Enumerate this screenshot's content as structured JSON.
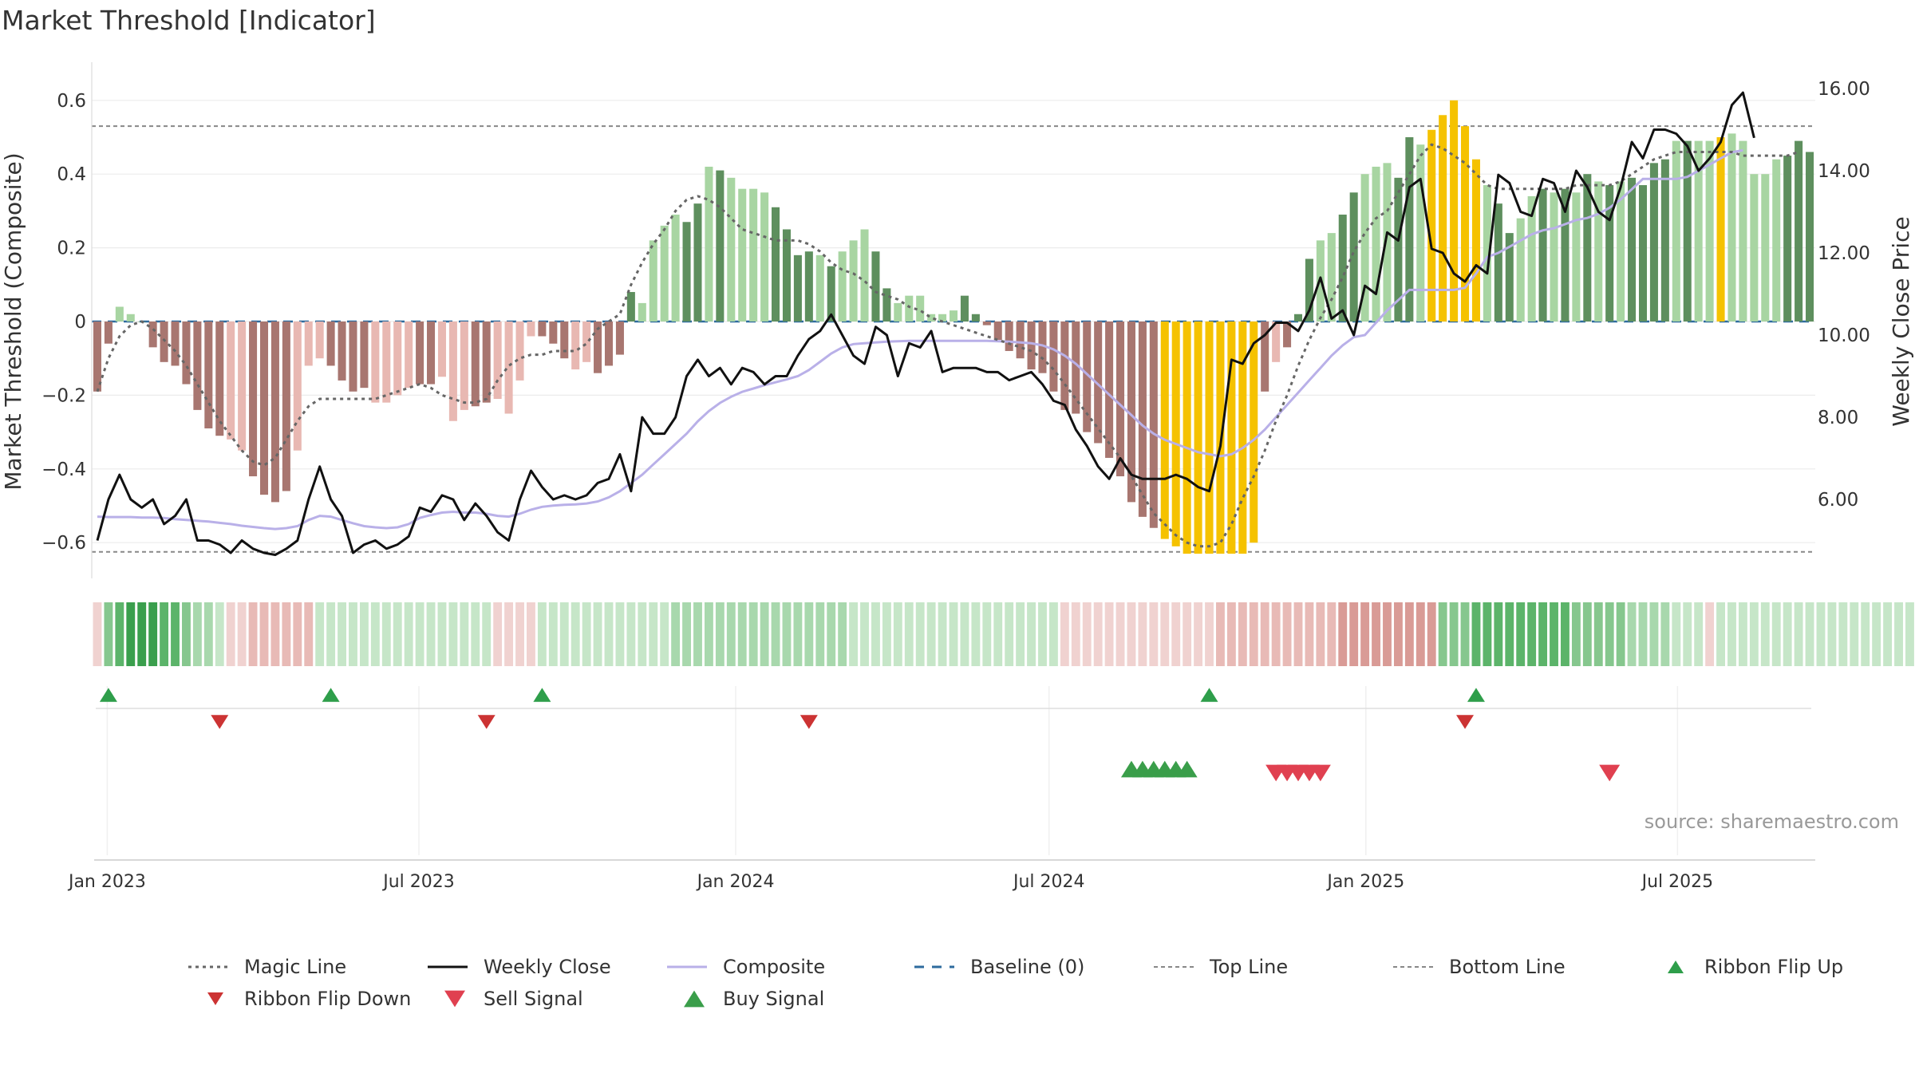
{
  "title": "Market Threshold [Indicator]",
  "source_text": "source: sharemaestro.com",
  "legend": [
    {
      "label": "Magic Line",
      "style": "dotted",
      "color": "#666666"
    },
    {
      "label": "Weekly Close",
      "style": "line",
      "color": "#111111"
    },
    {
      "label": "Composite",
      "style": "line",
      "color": "#b9b0e8"
    },
    {
      "label": "Baseline (0)",
      "style": "dashed",
      "color": "#2e6b9e"
    },
    {
      "label": "Top Line",
      "style": "dashed-thin",
      "color": "#888888"
    },
    {
      "label": "Bottom Line",
      "style": "dashed-thin",
      "color": "#888888"
    },
    {
      "label": "Ribbon Flip Up",
      "style": "tri-up",
      "color": "#2e9e4a"
    },
    {
      "label": "Ribbon Flip Down",
      "style": "tri-down",
      "color": "#cc3333"
    },
    {
      "label": "Sell Signal",
      "style": "tri-down-big",
      "color": "#e04050"
    },
    {
      "label": "Buy Signal",
      "style": "tri-up-big",
      "color": "#3a9e4a"
    }
  ],
  "colors": {
    "dark_green": "#5e8f5e",
    "light_green": "#a8d5a2",
    "dark_red": "#a87670",
    "light_red": "#e8b8b2",
    "gold": "#f5c200",
    "composite": "#b9b0e8",
    "ribbon_up": "#2e9e4a",
    "ribbon_down": "#cc3333",
    "buy": "#3a9e4a",
    "sell": "#e04050"
  },
  "chart_data": {
    "type": "bar",
    "title": "Market Threshold [Indicator]",
    "ylabel": "Market Threshold (Composite)",
    "y2label": "Weekly Close Price",
    "ylim": [
      -0.7,
      0.7
    ],
    "yticks": [
      "0.6",
      "0.4",
      "0.2",
      "0",
      "−0.2",
      "−0.4",
      "−0.6"
    ],
    "y2lim": [
      4.0,
      16.5
    ],
    "y2ticks": [
      "16.00",
      "14.00",
      "12.00",
      "10.00",
      "8.00",
      "6.00"
    ],
    "x_start": "2022-12-23",
    "x_end": "2025-09-19",
    "xticks": [
      "Jan 2023",
      "Jul 2023",
      "Jan 2024",
      "Jul 2024",
      "Jan 2025",
      "Jul 2025"
    ],
    "top_line": 0.53,
    "bottom_line": -0.625,
    "grid": true,
    "legend_position": "bottom",
    "bars": [
      -0.19,
      -0.06,
      0.04,
      0.02,
      0,
      -0.07,
      -0.11,
      -0.12,
      -0.17,
      -0.24,
      -0.29,
      -0.31,
      -0.32,
      -0.35,
      -0.42,
      -0.47,
      -0.49,
      -0.46,
      -0.35,
      -0.12,
      -0.1,
      -0.12,
      -0.16,
      -0.19,
      -0.18,
      -0.22,
      -0.22,
      -0.2,
      -0.18,
      -0.17,
      -0.17,
      -0.15,
      -0.27,
      -0.24,
      -0.23,
      -0.22,
      -0.21,
      -0.25,
      -0.16,
      -0.04,
      -0.04,
      -0.06,
      -0.1,
      -0.13,
      -0.11,
      -0.14,
      -0.12,
      -0.09,
      0.08,
      0.05,
      0.22,
      0.26,
      0.29,
      0.27,
      0.32,
      0.42,
      0.41,
      0.39,
      0.36,
      0.36,
      0.35,
      0.31,
      0.25,
      0.18,
      0.19,
      0.18,
      0.15,
      0.19,
      0.22,
      0.25,
      0.19,
      0.09,
      0.05,
      0.07,
      0.07,
      0.02,
      0.02,
      0.03,
      0.07,
      0.02,
      -0.01,
      -0.05,
      -0.08,
      -0.1,
      -0.13,
      -0.14,
      -0.19,
      -0.24,
      -0.25,
      -0.3,
      -0.33,
      -0.37,
      -0.42,
      -0.49,
      -0.53,
      -0.56,
      -0.59,
      -0.61,
      -0.63,
      -0.63,
      -0.63,
      -0.63,
      -0.63,
      -0.63,
      -0.6,
      -0.19,
      -0.11,
      -0.07,
      0.02,
      0.17,
      0.22,
      0.24,
      0.29,
      0.35,
      0.4,
      0.42,
      0.43,
      0.39,
      0.5,
      0.48,
      0.52,
      0.56,
      0.6,
      0.53,
      0.44,
      0.37,
      0.32,
      0.24,
      0.28,
      0.34,
      0.36,
      0.35,
      0.36,
      0.35,
      0.4,
      0.38,
      0.37,
      0.38,
      0.39,
      0.37,
      0.43,
      0.44,
      0.49,
      0.49,
      0.49,
      0.49,
      0.5,
      0.51,
      0.49,
      0.4,
      0.4,
      0.44,
      0.45,
      0.49,
      0.46
    ],
    "bar_shade": "DDLLDDDDDDDDLLDDDDLLLDDDDLLLLDDLLLDDLLLLDDDLLDDDDLLLLDDLDLLLLDDDDLDLLLDDLLLLLLDDDDDDDDDDDDDDDDDDDDDLLLLDDDLDDDLLDDLLLDDLDDLLLLDDLLDLDLDLDLDDDDLDLLDLLLLLDDDL",
    "gold_indices": [
      96,
      97,
      98,
      99,
      100,
      101,
      102,
      103,
      104,
      120,
      121,
      122,
      123,
      124,
      146
    ],
    "weekly_close": [
      5.0,
      6.0,
      6.6,
      6.0,
      5.8,
      6.0,
      5.4,
      5.6,
      6.0,
      5.0,
      5.0,
      4.9,
      4.7,
      5.0,
      4.8,
      4.7,
      4.65,
      4.8,
      5.0,
      6.0,
      6.8,
      6.0,
      5.6,
      4.7,
      4.9,
      5.0,
      4.8,
      4.9,
      5.1,
      5.8,
      5.7,
      6.1,
      6.0,
      5.5,
      5.9,
      5.6,
      5.2,
      5.0,
      6.0,
      6.7,
      6.3,
      6.0,
      6.1,
      6.0,
      6.1,
      6.4,
      6.5,
      7.1,
      6.2,
      8.0,
      7.6,
      7.6,
      8.0,
      9.0,
      9.4,
      9.0,
      9.2,
      8.8,
      9.2,
      9.1,
      8.8,
      9.0,
      9.0,
      9.5,
      9.9,
      10.1,
      10.5,
      10.0,
      9.5,
      9.3,
      10.2,
      10.0,
      9.0,
      9.8,
      9.7,
      10.1,
      9.1,
      9.2,
      9.2,
      9.2,
      9.1,
      9.1,
      8.9,
      9.0,
      9.1,
      8.8,
      8.4,
      8.3,
      7.7,
      7.3,
      6.8,
      6.5,
      7.0,
      6.6,
      6.5,
      6.5,
      6.5,
      6.6,
      6.5,
      6.3,
      6.2,
      7.3,
      9.4,
      9.3,
      9.8,
      10.0,
      10.3,
      10.3,
      10.1,
      10.6,
      11.4,
      10.4,
      10.6,
      10.0,
      11.2,
      11.0,
      12.5,
      12.3,
      13.6,
      13.8,
      12.1,
      12.0,
      11.5,
      11.3,
      11.7,
      11.5,
      13.9,
      13.7,
      13.0,
      12.9,
      13.8,
      13.7,
      13.0,
      14.0,
      13.6,
      13.0,
      12.8,
      13.6,
      14.7,
      14.3,
      15.0,
      15.0,
      14.9,
      14.6,
      14.0,
      14.3,
      14.7,
      15.6,
      15.9,
      14.8
    ],
    "composite": [
      5.58,
      5.57,
      5.57,
      5.57,
      5.56,
      5.56,
      5.55,
      5.52,
      5.5,
      5.48,
      5.46,
      5.43,
      5.4,
      5.36,
      5.33,
      5.3,
      5.28,
      5.3,
      5.35,
      5.5,
      5.6,
      5.58,
      5.5,
      5.42,
      5.35,
      5.32,
      5.3,
      5.32,
      5.4,
      5.55,
      5.62,
      5.68,
      5.7,
      5.68,
      5.68,
      5.65,
      5.6,
      5.58,
      5.65,
      5.75,
      5.82,
      5.85,
      5.87,
      5.88,
      5.9,
      5.95,
      6.05,
      6.2,
      6.4,
      6.6,
      6.85,
      7.1,
      7.35,
      7.6,
      7.9,
      8.15,
      8.35,
      8.5,
      8.62,
      8.7,
      8.78,
      8.85,
      8.92,
      9.0,
      9.15,
      9.35,
      9.55,
      9.7,
      9.78,
      9.8,
      9.82,
      9.84,
      9.85,
      9.86,
      9.86,
      9.86,
      9.86,
      9.86,
      9.86,
      9.86,
      9.86,
      9.85,
      9.84,
      9.82,
      9.8,
      9.75,
      9.65,
      9.5,
      9.3,
      9.05,
      8.8,
      8.55,
      8.3,
      8.05,
      7.8,
      7.6,
      7.45,
      7.35,
      7.25,
      7.15,
      7.1,
      7.05,
      7.1,
      7.25,
      7.45,
      7.7,
      8.0,
      8.3,
      8.6,
      8.9,
      9.2,
      9.5,
      9.75,
      9.95,
      10.0,
      10.3,
      10.6,
      10.85,
      11.1,
      11.1,
      11.1,
      11.1,
      11.1,
      11.15,
      11.5,
      11.9,
      12.0,
      12.15,
      12.3,
      12.45,
      12.55,
      12.6,
      12.7,
      12.8,
      12.85,
      12.95,
      13.1,
      13.3,
      13.55,
      13.8,
      13.8,
      13.8,
      13.8,
      13.85,
      14.0,
      14.15,
      14.3,
      14.45,
      14.5
    ],
    "magic_line": [
      -0.19,
      -0.1,
      -0.04,
      -0.01,
      0,
      -0.02,
      -0.05,
      -0.08,
      -0.12,
      -0.17,
      -0.22,
      -0.27,
      -0.31,
      -0.35,
      -0.38,
      -0.39,
      -0.37,
      -0.32,
      -0.27,
      -0.23,
      -0.21,
      -0.21,
      -0.21,
      -0.21,
      -0.21,
      -0.21,
      -0.2,
      -0.19,
      -0.18,
      -0.17,
      -0.18,
      -0.2,
      -0.21,
      -0.22,
      -0.22,
      -0.21,
      -0.16,
      -0.12,
      -0.1,
      -0.09,
      -0.09,
      -0.08,
      -0.08,
      -0.08,
      -0.06,
      -0.02,
      0,
      0.02,
      0.1,
      0.16,
      0.21,
      0.25,
      0.3,
      0.33,
      0.34,
      0.33,
      0.31,
      0.28,
      0.25,
      0.24,
      0.23,
      0.22,
      0.22,
      0.22,
      0.21,
      0.19,
      0.16,
      0.14,
      0.13,
      0.11,
      0.08,
      0.07,
      0.06,
      0.04,
      0.03,
      0.01,
      0,
      -0.01,
      -0.02,
      -0.03,
      -0.04,
      -0.05,
      -0.06,
      -0.07,
      -0.08,
      -0.1,
      -0.13,
      -0.17,
      -0.21,
      -0.25,
      -0.29,
      -0.33,
      -0.37,
      -0.42,
      -0.47,
      -0.52,
      -0.55,
      -0.58,
      -0.6,
      -0.61,
      -0.61,
      -0.6,
      -0.55,
      -0.48,
      -0.42,
      -0.35,
      -0.27,
      -0.2,
      -0.12,
      -0.05,
      0.01,
      0.06,
      0.12,
      0.19,
      0.24,
      0.28,
      0.3,
      0.35,
      0.4,
      0.45,
      0.48,
      0.47,
      0.45,
      0.43,
      0.4,
      0.37,
      0.36,
      0.36,
      0.36,
      0.36,
      0.36,
      0.36,
      0.36,
      0.37,
      0.37,
      0.37,
      0.37,
      0.38,
      0.4,
      0.42,
      0.44,
      0.45,
      0.46,
      0.46,
      0.46,
      0.46,
      0.46,
      0.46,
      0.45,
      0.45,
      0.45,
      0.45,
      0.45,
      0.46
    ],
    "ribbon": [
      -1,
      3,
      4,
      5,
      5,
      5,
      4,
      4,
      3,
      2,
      2,
      1,
      -1,
      -1,
      -2,
      -2,
      -2,
      -2,
      -2,
      -2,
      1,
      1,
      1,
      1,
      1,
      1,
      1,
      1,
      1,
      1,
      1,
      1,
      1,
      1,
      1,
      1,
      -1,
      -1,
      -1,
      -1,
      1,
      1,
      1,
      1,
      1,
      1,
      1,
      1,
      1,
      1,
      1,
      1,
      2,
      2,
      2,
      2,
      2,
      2,
      2,
      2,
      2,
      2,
      2,
      2,
      2,
      2,
      2,
      2,
      1,
      1,
      1,
      1,
      1,
      1,
      1,
      1,
      1,
      1,
      1,
      1,
      1,
      1,
      1,
      1,
      1,
      1,
      1,
      -1,
      -1,
      -1,
      -1,
      -1,
      -1,
      -1,
      -1,
      -1,
      -1,
      -1,
      -1,
      -1,
      -1,
      -2,
      -2,
      -2,
      -2,
      -2,
      -2,
      -2,
      -2,
      -2,
      -2,
      -2,
      -3,
      -3,
      -3,
      -3,
      -3,
      -3,
      -3,
      -3,
      -3,
      3,
      3,
      3,
      4,
      4,
      4,
      4,
      4,
      4,
      4,
      4,
      4,
      3,
      3,
      3,
      3,
      3,
      2,
      2,
      2,
      2,
      1,
      1,
      1,
      -1,
      1,
      1,
      1,
      1,
      1,
      1,
      1,
      1,
      1,
      1,
      1,
      1,
      1,
      1,
      1,
      1,
      1,
      1,
      1,
      1,
      1,
      1,
      1
    ],
    "ribbon_flip_up": [
      1,
      21,
      40,
      100,
      124
    ],
    "ribbon_flip_down": [
      11,
      35,
      64,
      123
    ],
    "buy_signals": [
      93,
      94,
      95,
      96,
      97,
      98
    ],
    "sell_signals": [
      106,
      107,
      108,
      109,
      110,
      136
    ]
  }
}
